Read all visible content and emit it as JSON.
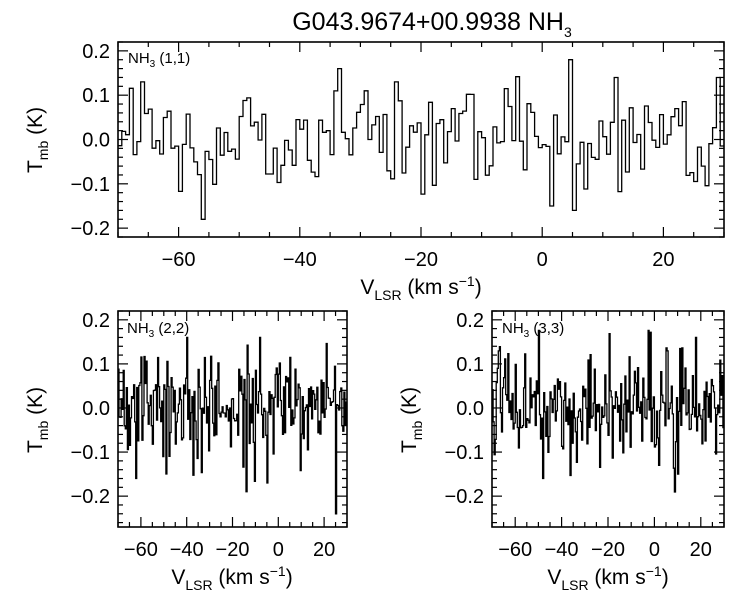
{
  "figure": {
    "title_main": "G043.9674+00.9938 NH",
    "title_sub": "3"
  },
  "chart_data": [
    {
      "type": "line",
      "style": "step",
      "panel_label": {
        "main": "NH",
        "sub": "3",
        "transition": " (1,1)"
      },
      "xlabel": {
        "main": "V",
        "sub": "LSR",
        "unit": " (km s",
        "unit_sup": "−1",
        "close": ")"
      },
      "ylabel": {
        "main": "T",
        "sub": "mb",
        "unit": " (K)"
      },
      "xlim": [
        -70,
        30
      ],
      "ylim": [
        -0.22,
        0.22
      ],
      "xticks": [
        -60,
        -40,
        -20,
        0,
        20
      ],
      "xtick_labels": [
        "−60",
        "−40",
        "−20",
        "0",
        "20"
      ],
      "yticks": [
        -0.2,
        -0.1,
        0.0,
        0.1,
        0.2
      ],
      "ytick_labels": [
        "−0.2",
        "−0.1",
        "0.0",
        "0.1",
        "0.2"
      ],
      "noise_rms": 0.06,
      "notable_points": [
        {
          "x": -66.0,
          "y": 0.13
        },
        {
          "x": -56.0,
          "y": -0.18
        },
        {
          "x": -33.5,
          "y": 0.16
        },
        {
          "x": -24.0,
          "y": 0.13
        },
        {
          "x": 1.5,
          "y": -0.15
        },
        {
          "x": 4.5,
          "y": 0.18
        },
        {
          "x": 5.5,
          "y": -0.16
        },
        {
          "x": 12.0,
          "y": 0.14
        },
        {
          "x": 29.0,
          "y": 0.14
        }
      ]
    },
    {
      "type": "line",
      "style": "step",
      "panel_label": {
        "main": "NH",
        "sub": "3",
        "transition": " (2,2)"
      },
      "xlabel": {
        "main": "V",
        "sub": "LSR",
        "unit": " (km s",
        "unit_sup": "−1",
        "close": ")"
      },
      "ylabel": {
        "main": "T",
        "sub": "mb",
        "unit": " (K)"
      },
      "xlim": [
        -70,
        30
      ],
      "ylim": [
        -0.27,
        0.22
      ],
      "xticks": [
        -60,
        -40,
        -20,
        0,
        20
      ],
      "xtick_labels": [
        "−60",
        "−40",
        "−20",
        "0",
        "20"
      ],
      "yticks": [
        -0.2,
        -0.1,
        0.0,
        0.1,
        0.2
      ],
      "ytick_labels": [
        "−0.2",
        "−0.1",
        "0.0",
        "0.1",
        "0.2"
      ],
      "noise_rms": 0.06,
      "notable_points": [
        {
          "x": 25.0,
          "y": -0.24
        },
        {
          "x": -62.0,
          "y": -0.16
        },
        {
          "x": -40.0,
          "y": 0.16
        },
        {
          "x": -8.0,
          "y": 0.16
        }
      ]
    },
    {
      "type": "line",
      "style": "step",
      "panel_label": {
        "main": "NH",
        "sub": "3",
        "transition": " (3,3)"
      },
      "xlabel": {
        "main": "V",
        "sub": "LSR",
        "unit": " (km s",
        "unit_sup": "−1",
        "close": ")"
      },
      "ylabel": {
        "main": "T",
        "sub": "mb",
        "unit": " (K)"
      },
      "xlim": [
        -70,
        30
      ],
      "ylim": [
        -0.27,
        0.22
      ],
      "xticks": [
        -60,
        -40,
        -20,
        0,
        20
      ],
      "xtick_labels": [
        "−60",
        "−40",
        "−20",
        "0",
        "20"
      ],
      "yticks": [
        -0.2,
        -0.1,
        0.0,
        0.1,
        0.2
      ],
      "ytick_labels": [
        "−0.2",
        "−0.1",
        "0.0",
        "0.1",
        "0.2"
      ],
      "noise_rms": 0.06,
      "notable_points": [
        {
          "x": -48.0,
          "y": -0.16
        },
        {
          "x": 18.0,
          "y": 0.16
        },
        {
          "x": 10.0,
          "y": -0.15
        }
      ]
    }
  ]
}
